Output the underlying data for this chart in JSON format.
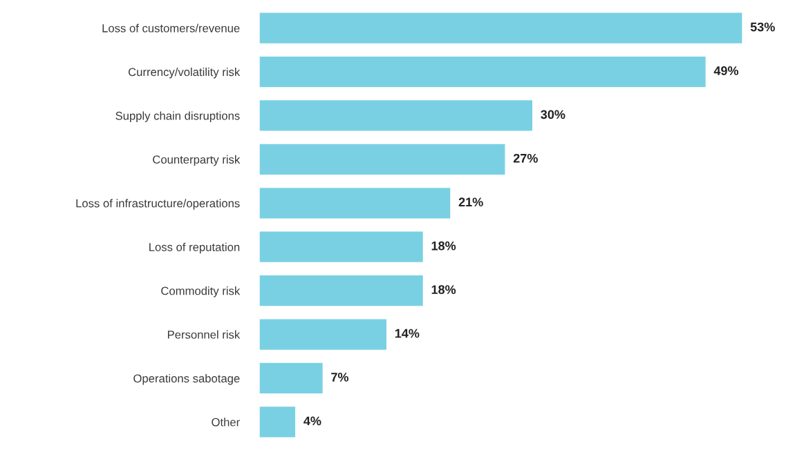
{
  "chart_data": {
    "type": "bar",
    "orientation": "horizontal",
    "categories": [
      "Loss of customers/revenue",
      "Currency/volatility risk",
      "Supply chain disruptions",
      "Counterparty risk",
      "Loss of infrastructure/operations",
      "Loss of reputation",
      "Commodity risk",
      "Personnel risk",
      "Operations sabotage",
      "Other"
    ],
    "values": [
      53,
      49,
      30,
      27,
      21,
      18,
      18,
      14,
      7,
      4
    ],
    "value_labels": [
      "53%",
      "49%",
      "30%",
      "27%",
      "21%",
      "18%",
      "18%",
      "14%",
      "7%",
      "4%"
    ],
    "color": "#79d0e3",
    "grid": false,
    "legend": false
  }
}
